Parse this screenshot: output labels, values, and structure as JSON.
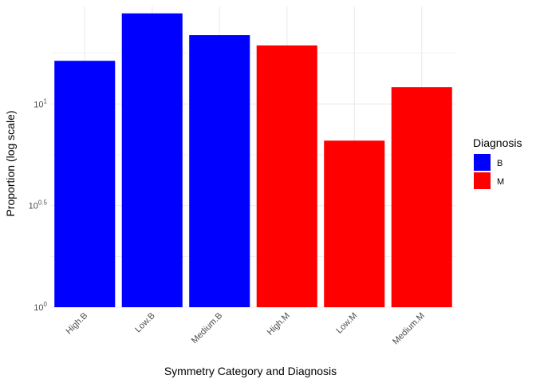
{
  "chart_data": {
    "type": "bar",
    "title": "",
    "xlabel": "Symmetry Category and Diagnosis",
    "ylabel": "Proportion (log scale)",
    "y_scale": "log10",
    "y_ticks": [
      {
        "value": 1,
        "base": "10",
        "exp": "0"
      },
      {
        "value": 3.1623,
        "base": "10",
        "exp": "0.5"
      },
      {
        "value": 10,
        "base": "10",
        "exp": "1"
      }
    ],
    "ylim": [
      1,
      30.2
    ],
    "categories": [
      "High.B",
      "Low.B",
      "Medium.B",
      "High.M",
      "Low.M",
      "Medium.M"
    ],
    "values": [
      16.3,
      27.9,
      21.8,
      19.4,
      6.6,
      12.1
    ],
    "groups": [
      "B",
      "B",
      "B",
      "M",
      "M",
      "M"
    ],
    "legend": {
      "title": "Diagnosis",
      "position": "right",
      "entries": [
        {
          "label": "B",
          "color": "#0000ff"
        },
        {
          "label": "M",
          "color": "#ff0000"
        }
      ]
    },
    "grid": true
  }
}
